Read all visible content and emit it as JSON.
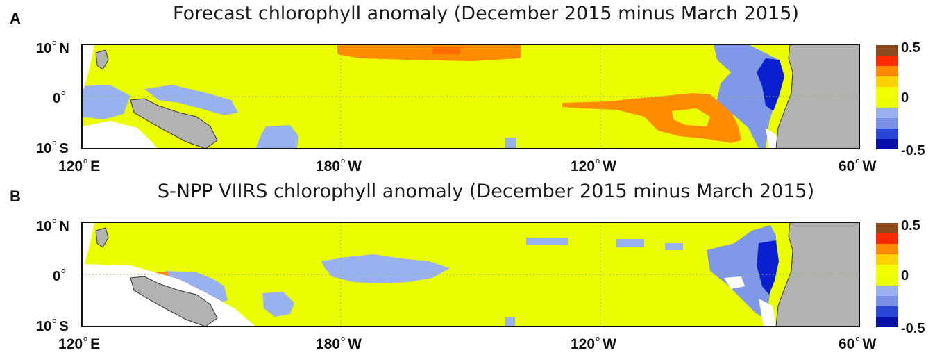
{
  "panels": [
    {
      "letter": "A",
      "title": "Forecast chlorophyll anomaly (December 2015 minus March 2015)",
      "lat_labels": {
        "north": "10",
        "north_hemi": "N",
        "equator": "0",
        "south": "10",
        "south_hemi": "S"
      },
      "lon_labels": [
        {
          "value": "120",
          "hemi": "E"
        },
        {
          "value": "180",
          "hemi": "W"
        },
        {
          "value": "120",
          "hemi": "W"
        },
        {
          "value": "60",
          "hemi": "W"
        }
      ],
      "colorbar_labels": {
        "max": "0.5",
        "mid": "0",
        "min": "-0.5"
      }
    },
    {
      "letter": "B",
      "title": "S-NPP VIIRS chlorophyll anomaly (December 2015 minus March 2015)",
      "lat_labels": {
        "north": "10",
        "north_hemi": "N",
        "equator": "0",
        "south": "10",
        "south_hemi": "S"
      },
      "lon_labels": [
        {
          "value": "120",
          "hemi": "E"
        },
        {
          "value": "180",
          "hemi": "W"
        },
        {
          "value": "120",
          "hemi": "W"
        },
        {
          "value": "60",
          "hemi": "W"
        }
      ],
      "colorbar_labels": {
        "max": "0.5",
        "mid": "0",
        "min": "-0.5"
      }
    }
  ],
  "colorbar": {
    "range": [
      -0.5,
      0.5
    ],
    "colors": [
      "#8b4a1c",
      "#ff2a00",
      "#ff8a00",
      "#ffd200",
      "#f2ff00",
      "#ecff00",
      "#9ab0f0",
      "#7a92e6",
      "#2a46d8",
      "#0a0fa8"
    ]
  },
  "colors": {
    "ocean_background": "#ecff00",
    "land": "#b2b2b2",
    "no_data": "#ffffff",
    "positive_anomaly": "#ff8c00",
    "light_negative": "#99b1ef",
    "strong_negative": "#0b1fd0"
  },
  "map_extent": {
    "lon_min": 120,
    "lon_max": 300,
    "lat_min": -10,
    "lat_max": 10
  }
}
